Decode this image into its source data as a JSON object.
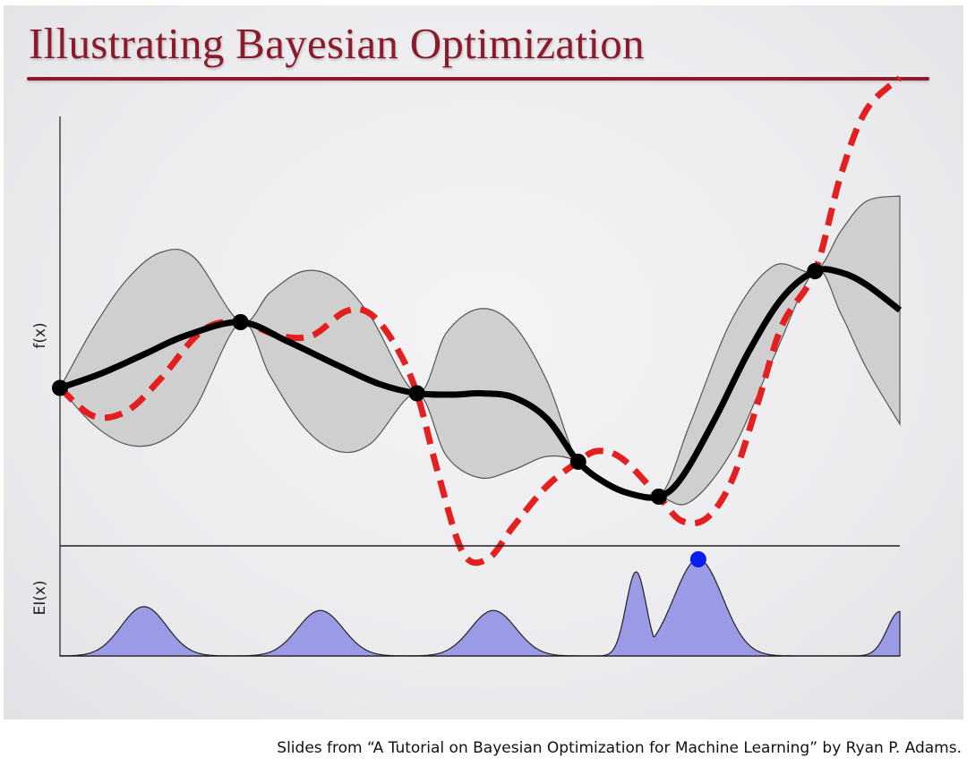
{
  "slide": {
    "title": "Illustrating Bayesian Optimization",
    "caption": "Slides from “A Tutorial on Bayesian Optimization for Machine Learning” by Ryan P. Adams."
  },
  "colors": {
    "title": "#8b1a2b",
    "mean": "#000000",
    "objective": "#e41f1f",
    "confidence_band": "#cfcfcf",
    "ei_fill": "#9a9ae6",
    "next_point": "#0a1ef0"
  },
  "chart_data": [
    {
      "type": "line",
      "ylabel": "f(x)",
      "xlabel": "",
      "grid": false,
      "xlim": [
        0,
        1
      ],
      "observations": {
        "x": [
          0.0,
          0.215,
          0.425,
          0.617,
          0.713,
          0.899
        ],
        "y": [
          0.565,
          0.81,
          0.545,
          0.29,
          0.16,
          1.0
        ]
      },
      "series": [
        {
          "style": "mean",
          "x": [
            0,
            0.05,
            0.1,
            0.15,
            0.215,
            0.27,
            0.33,
            0.38,
            0.425,
            0.47,
            0.5,
            0.54,
            0.58,
            0.617,
            0.65,
            0.68,
            0.713,
            0.74,
            0.78,
            0.82,
            0.86,
            0.899,
            0.93,
            0.96,
            1.0
          ],
          "y": [
            0.565,
            0.62,
            0.69,
            0.76,
            0.81,
            0.74,
            0.65,
            0.58,
            0.545,
            0.54,
            0.545,
            0.53,
            0.45,
            0.29,
            0.21,
            0.17,
            0.16,
            0.23,
            0.45,
            0.7,
            0.9,
            1.0,
            0.995,
            0.95,
            0.855
          ]
        },
        {
          "style": "dashed",
          "x": [
            0,
            0.04,
            0.08,
            0.12,
            0.17,
            0.215,
            0.26,
            0.3,
            0.34,
            0.37,
            0.4,
            0.425,
            0.45,
            0.48,
            0.51,
            0.54,
            0.58,
            0.617,
            0.64,
            0.67,
            0.713,
            0.74,
            0.77,
            0.8,
            0.83,
            0.86,
            0.899,
            0.93,
            0.96,
            1.0
          ],
          "y": [
            0.565,
            0.46,
            0.48,
            0.6,
            0.78,
            0.81,
            0.76,
            0.76,
            0.85,
            0.84,
            0.72,
            0.545,
            0.25,
            -0.05,
            -0.07,
            0.05,
            0.2,
            0.29,
            0.33,
            0.3,
            0.16,
            0.07,
            0.08,
            0.22,
            0.5,
            0.8,
            1.0,
            1.36,
            1.6,
            1.72
          ]
        }
      ],
      "band": {
        "x": [
          0,
          0.04,
          0.08,
          0.12,
          0.16,
          0.215,
          0.25,
          0.29,
          0.33,
          0.37,
          0.425,
          0.46,
          0.5,
          0.54,
          0.58,
          0.617,
          0.66,
          0.713,
          0.75,
          0.8,
          0.85,
          0.899,
          0.93,
          0.96,
          1.0
        ],
        "upper": [
          0.565,
          0.79,
          0.97,
          1.07,
          1.05,
          0.81,
          0.92,
          1.0,
          0.97,
          0.83,
          0.545,
          0.77,
          0.86,
          0.8,
          0.59,
          0.29,
          0.2,
          0.16,
          0.43,
          0.82,
          1.02,
          1.0,
          1.15,
          1.26,
          1.28
        ]
      }
    },
    {
      "type": "area",
      "ylabel": "EI(x)",
      "xlabel": "",
      "grid": false,
      "xlim": [
        0,
        1
      ],
      "peaks": [
        {
          "center": 0.1,
          "height": 0.51,
          "width": 0.027
        },
        {
          "center": 0.31,
          "height": 0.47,
          "width": 0.027
        },
        {
          "center": 0.516,
          "height": 0.47,
          "width": 0.027
        },
        {
          "center": 0.686,
          "height": 0.87,
          "width": 0.012
        },
        {
          "center": 0.76,
          "height": 1.0,
          "width": 0.029
        },
        {
          "center": 1.0,
          "height": 0.46,
          "width": 0.015
        }
      ],
      "next_point": {
        "x": 0.76,
        "y": 1.0
      }
    }
  ]
}
